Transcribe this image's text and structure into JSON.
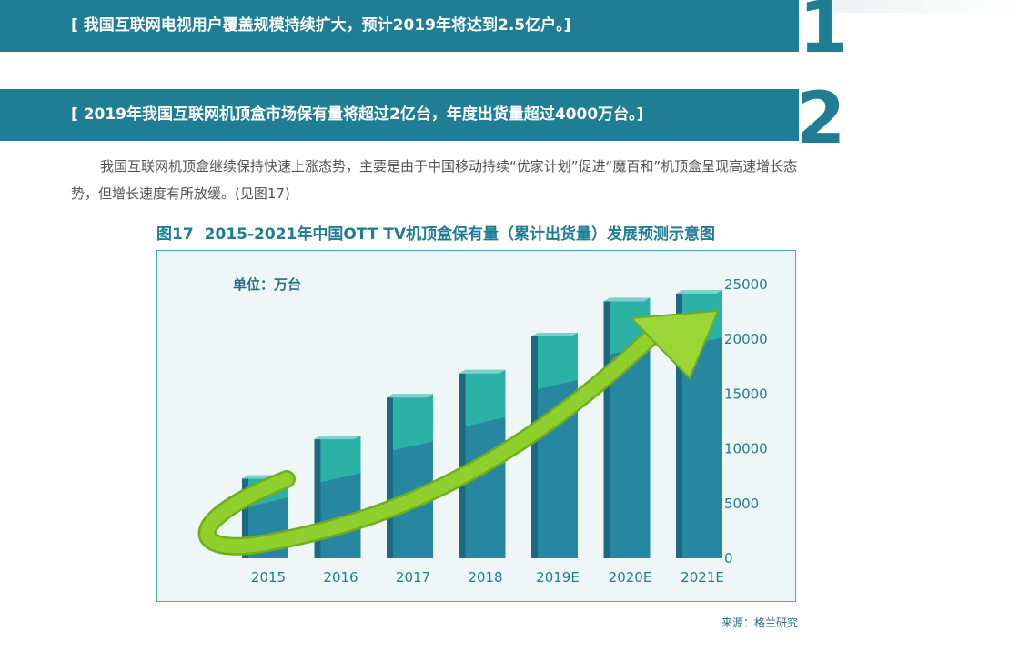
{
  "section1": {
    "number": "1",
    "heading": "[ 我国互联网电视用户覆盖规模持续扩大，预计2019年将达到2.5亿户。]"
  },
  "section2": {
    "number": "2",
    "heading": "[ 2019年我国互联网机顶盒市场保有量将超过2亿台，年度出货量超过4000万台。]"
  },
  "paragraph": "我国互联网机顶盒继续保持快速上涨态势，主要是由于中国移动持续“优家计划”促进“魔百和”机顶盒呈现高速增长态势，但增长速度有所放缓。(见图17)",
  "figure": {
    "label": "图17",
    "title": "2015-2021年中国OTT TV机顶盒保有量（累计出货量）发展预测示意图"
  },
  "source": "来源：格兰研究",
  "colors": {
    "brand": "#1f7d94",
    "bar_dark": "#2787a1",
    "bar_light": "#2bb1a6",
    "arrow": "#8fd02c"
  },
  "chart_data": {
    "type": "bar",
    "unit_label": "单位：万台",
    "categories": [
      "2015",
      "2016",
      "2017",
      "2018",
      "2019E",
      "2020E",
      "2021E"
    ],
    "values": [
      7600,
      11200,
      15000,
      17200,
      20600,
      23800,
      24500
    ],
    "y_ticks": [
      "25000",
      "20000",
      "15000",
      "10000",
      "5000",
      "0"
    ],
    "ylim": [
      0,
      25000
    ],
    "trend_arrow": true
  }
}
